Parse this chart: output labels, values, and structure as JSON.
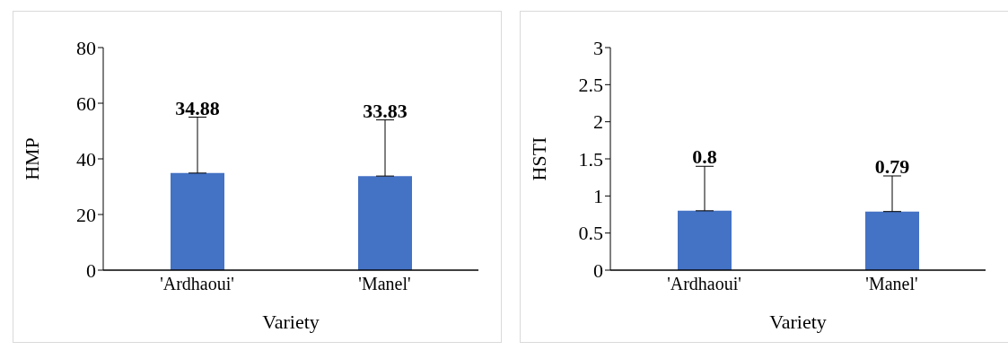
{
  "chart_data": [
    {
      "type": "bar",
      "xlabel": "Variety",
      "ylabel": "HMP",
      "categories": [
        "'Ardhaoui'",
        "'Manel'"
      ],
      "values": [
        34.88,
        33.83
      ],
      "color": "#4472c4",
      "errors": [
        [
          34.88,
          55
        ],
        [
          33.83,
          54
        ]
      ],
      "ylim": [
        0,
        80
      ],
      "yticks": [
        0,
        20,
        40,
        60,
        80
      ],
      "data_labels": true,
      "grid": false,
      "legend": false
    },
    {
      "type": "bar",
      "xlabel": "Variety",
      "ylabel": "HSTI",
      "categories": [
        "'Ardhaoui'",
        "'Manel'"
      ],
      "values": [
        0.8,
        0.79
      ],
      "color": "#4472c4",
      "errors": [
        [
          0.8,
          1.4
        ],
        [
          0.79,
          1.27
        ]
      ],
      "ylim": [
        0,
        3
      ],
      "yticks": [
        0,
        0.5,
        1,
        1.5,
        2,
        2.5,
        3
      ],
      "data_labels": true,
      "grid": false,
      "legend": false
    }
  ]
}
